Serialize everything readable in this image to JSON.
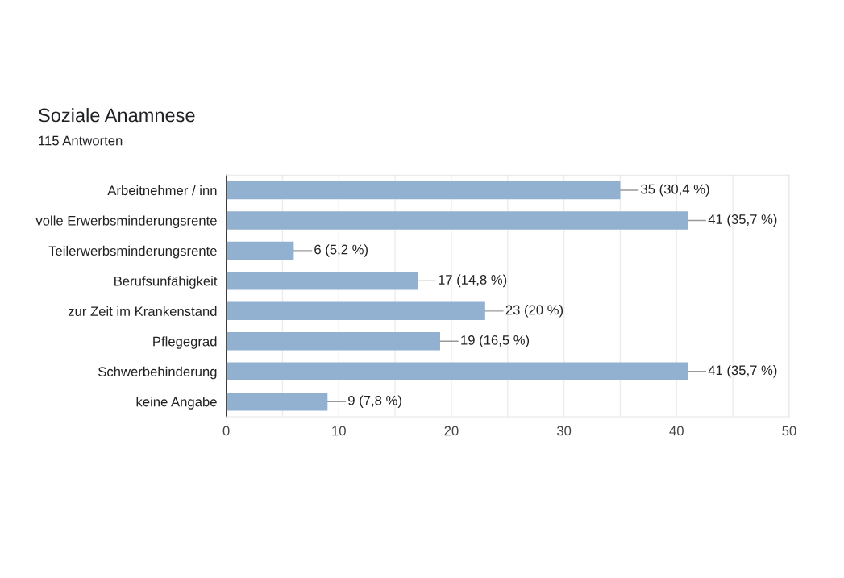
{
  "chart_data": {
    "type": "bar",
    "orientation": "horizontal",
    "title": "Soziale Anamnese",
    "subtitle": "115 Antworten",
    "categories": [
      "Arbeitnehmer / inn",
      "volle Erwerbsminderungsrente",
      "Teilerwerbsminderungsrente",
      "Berufsunfähigkeit",
      "zur Zeit im Krankenstand",
      "Pflegegrad",
      "Schwerbehinderung",
      "keine Angabe"
    ],
    "values": [
      35,
      41,
      6,
      17,
      23,
      19,
      41,
      9
    ],
    "value_labels": [
      "35 (30,4 %)",
      "41 (35,7 %)",
      "6 (5,2 %)",
      "17 (14,8 %)",
      "23 (20 %)",
      "19 (16,5 %)",
      "41 (35,7 %)",
      "9 (7,8 %)"
    ],
    "color": "#92b0cf",
    "xlim": [
      0,
      50
    ],
    "xticks": [
      0,
      {
        "value": 5,
        "label": null
      },
      10,
      {
        "value": 15,
        "label": null
      },
      20,
      {
        "value": 25,
        "label": null
      },
      30,
      {
        "value": 35,
        "label": null
      },
      40,
      {
        "value": 45,
        "label": null
      },
      50
    ],
    "grid": "x",
    "legend": false
  }
}
